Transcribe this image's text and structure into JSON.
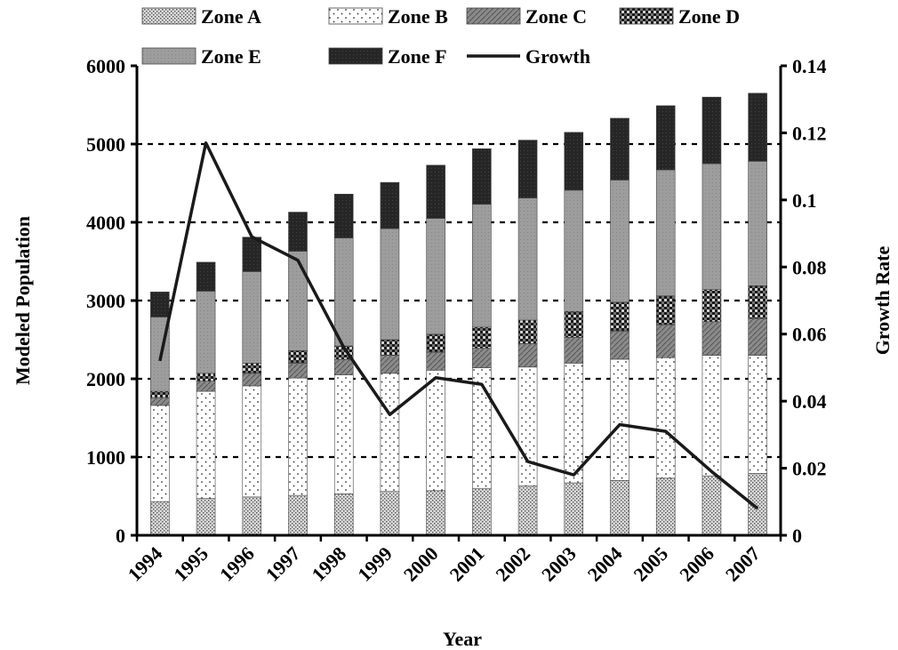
{
  "chart_data": {
    "type": "bar",
    "stacked": true,
    "categories": [
      "1994",
      "1995",
      "1996",
      "1997",
      "1998",
      "1999",
      "2000",
      "2001",
      "2002",
      "2003",
      "2004",
      "2005",
      "2006",
      "2007"
    ],
    "series": [
      {
        "name": "Zone A",
        "values": [
          430,
          470,
          490,
          510,
          530,
          560,
          570,
          600,
          630,
          670,
          700,
          730,
          760,
          790
        ]
      },
      {
        "name": "Zone B",
        "values": [
          1230,
          1370,
          1420,
          1500,
          1520,
          1510,
          1540,
          1540,
          1520,
          1530,
          1550,
          1540,
          1540,
          1510
        ]
      },
      {
        "name": "Zone C",
        "values": [
          100,
          130,
          160,
          190,
          200,
          230,
          230,
          250,
          300,
          330,
          360,
          420,
          430,
          470
        ]
      },
      {
        "name": "Zone D",
        "values": [
          80,
          100,
          130,
          160,
          170,
          200,
          230,
          270,
          300,
          330,
          370,
          370,
          410,
          420
        ]
      },
      {
        "name": "Zone E",
        "values": [
          950,
          1050,
          1170,
          1270,
          1380,
          1420,
          1480,
          1570,
          1560,
          1550,
          1560,
          1610,
          1610,
          1590
        ]
      },
      {
        "name": "Zone F",
        "values": [
          320,
          370,
          440,
          500,
          560,
          590,
          680,
          710,
          740,
          740,
          790,
          820,
          850,
          870
        ]
      }
    ],
    "line_series": {
      "name": "Growth",
      "axis": "right",
      "values": [
        0.052,
        0.117,
        0.089,
        0.082,
        0.056,
        0.036,
        0.047,
        0.045,
        0.022,
        0.018,
        0.033,
        0.031,
        0.019,
        0.008
      ]
    },
    "xlabel": "Year",
    "ylabel": "Modeled Population",
    "y2label": "Growth Rate",
    "ylim": [
      0,
      6000
    ],
    "yticks": [
      0,
      1000,
      2000,
      3000,
      4000,
      5000,
      6000
    ],
    "y2lim": [
      0,
      0.14
    ],
    "y2ticks": [
      "0",
      "0.02",
      "0.04",
      "0.06",
      "0.08",
      "0.1",
      "0.12",
      "0.14"
    ],
    "grid": "horizontal-dashed",
    "legend_position": "top"
  }
}
